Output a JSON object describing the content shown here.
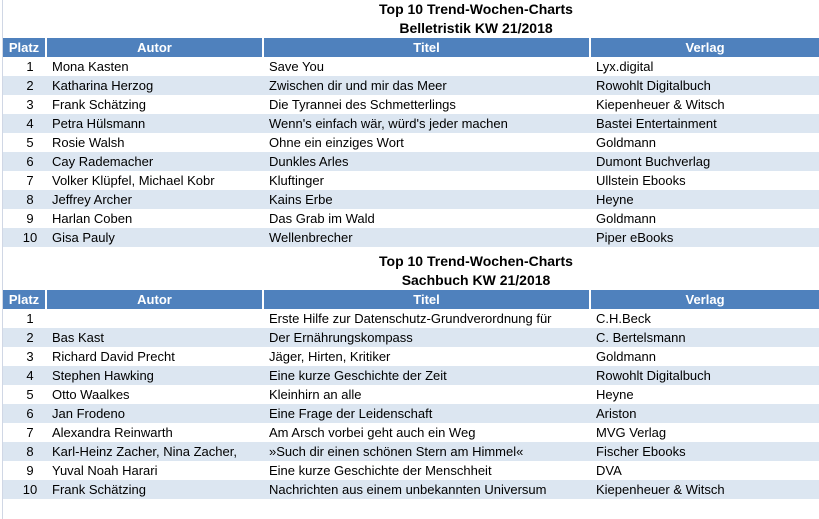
{
  "colors": {
    "header_bg": "#4F81BD",
    "band_bg": "#DCE6F1",
    "gridline": "#D0D7E5",
    "header_text": "#FFFFFF"
  },
  "tables": [
    {
      "title_line1": "Top 10 Trend-Wochen-Charts",
      "title_line2": "Belletristik KW 21/2018",
      "columns": [
        "Platz",
        "Autor",
        "Titel",
        "Verlag"
      ],
      "rows": [
        {
          "platz": "1",
          "autor": "Mona Kasten",
          "titel": "Save You",
          "verlag": "Lyx.digital"
        },
        {
          "platz": "2",
          "autor": "Katharina Herzog",
          "titel": "Zwischen dir und mir das Meer",
          "verlag": "Rowohlt Digitalbuch"
        },
        {
          "platz": "3",
          "autor": "Frank Schätzing",
          "titel": "Die Tyrannei des Schmetterlings",
          "verlag": "Kiepenheuer & Witsch"
        },
        {
          "platz": "4",
          "autor": "Petra Hülsmann",
          "titel": "Wenn's einfach wär, würd's jeder machen",
          "verlag": "Bastei Entertainment"
        },
        {
          "platz": "5",
          "autor": "Rosie Walsh",
          "titel": "Ohne ein einziges Wort",
          "verlag": "Goldmann"
        },
        {
          "platz": "6",
          "autor": "Cay Rademacher",
          "titel": "Dunkles Arles",
          "verlag": "Dumont Buchverlag"
        },
        {
          "platz": "7",
          "autor": "Volker Klüpfel, Michael Kobr",
          "titel": "Kluftinger",
          "verlag": "Ullstein Ebooks"
        },
        {
          "platz": "8",
          "autor": "Jeffrey Archer",
          "titel": "Kains Erbe",
          "verlag": "Heyne"
        },
        {
          "platz": "9",
          "autor": "Harlan Coben",
          "titel": "Das Grab im Wald",
          "verlag": "Goldmann"
        },
        {
          "platz": "10",
          "autor": "Gisa Pauly",
          "titel": "Wellenbrecher",
          "verlag": "Piper eBooks"
        }
      ]
    },
    {
      "title_line1": "Top 10 Trend-Wochen-Charts",
      "title_line2": "Sachbuch KW 21/2018",
      "columns": [
        "Platz",
        "Autor",
        "Titel",
        "Verlag"
      ],
      "rows": [
        {
          "platz": "1",
          "autor": "",
          "titel": "Erste Hilfe zur Datenschutz-Grundverordnung für",
          "verlag": "C.H.Beck"
        },
        {
          "platz": "2",
          "autor": "Bas Kast",
          "titel": "Der Ernährungskompass",
          "verlag": "C. Bertelsmann"
        },
        {
          "platz": "3",
          "autor": "Richard David Precht",
          "titel": "Jäger, Hirten, Kritiker",
          "verlag": "Goldmann"
        },
        {
          "platz": "4",
          "autor": "Stephen Hawking",
          "titel": "Eine kurze Geschichte der Zeit",
          "verlag": "Rowohlt Digitalbuch"
        },
        {
          "platz": "5",
          "autor": "Otto Waalkes",
          "titel": "Kleinhirn an alle",
          "verlag": "Heyne"
        },
        {
          "platz": "6",
          "autor": "Jan Frodeno",
          "titel": "Eine Frage der Leidenschaft",
          "verlag": "Ariston"
        },
        {
          "platz": "7",
          "autor": "Alexandra Reinwarth",
          "titel": "Am Arsch vorbei geht auch ein Weg",
          "verlag": "MVG Verlag"
        },
        {
          "platz": "8",
          "autor": "Karl-Heinz Zacher, Nina Zacher,",
          "titel": "»Such dir einen schönen Stern am Himmel«",
          "verlag": "Fischer Ebooks"
        },
        {
          "platz": "9",
          "autor": "Yuval Noah Harari",
          "titel": "Eine kurze Geschichte der Menschheit",
          "verlag": "DVA"
        },
        {
          "platz": "10",
          "autor": "Frank Schätzing",
          "titel": "Nachrichten aus einem unbekannten Universum",
          "verlag": "Kiepenheuer & Witsch"
        }
      ]
    }
  ]
}
